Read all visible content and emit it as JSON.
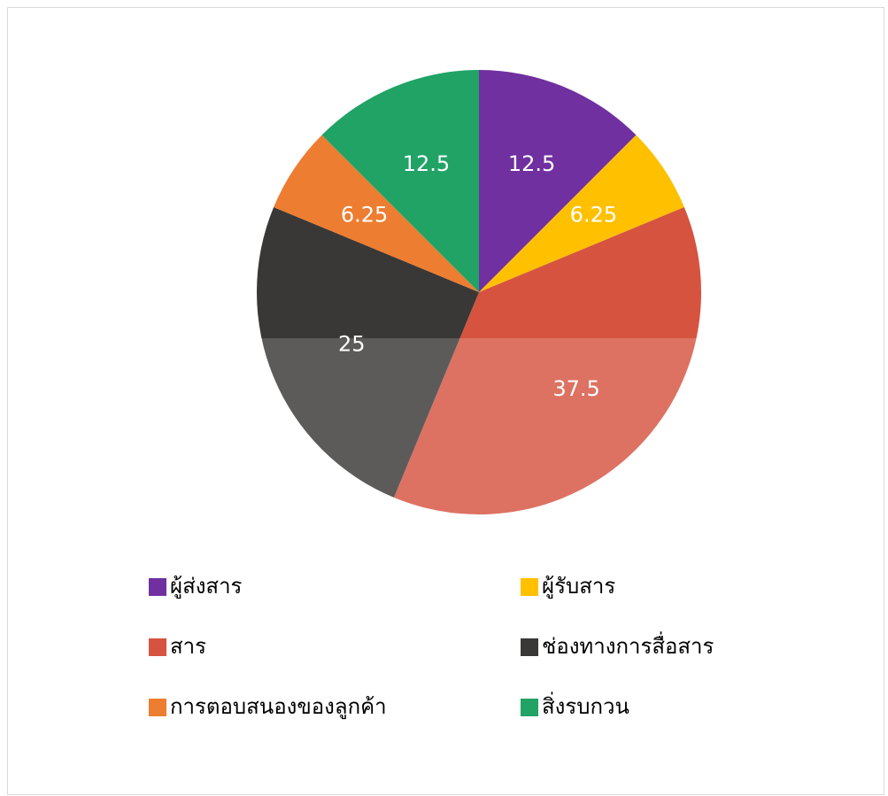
{
  "chart_data": {
    "type": "pie",
    "categories": [
      "ผู้ส่งสาร",
      "ผู้รับสาร",
      "สาร",
      "ช่องทางการสื่อสาร",
      "การตอบสนองของลูกค้า",
      "สิ่งรบกวน"
    ],
    "values": [
      12.5,
      6.25,
      37.5,
      25,
      6.25,
      12.5
    ],
    "colors": [
      "#7030a0",
      "#ffc000",
      "#d65340",
      "#3a3836",
      "#ed7d31",
      "#21a366"
    ]
  }
}
